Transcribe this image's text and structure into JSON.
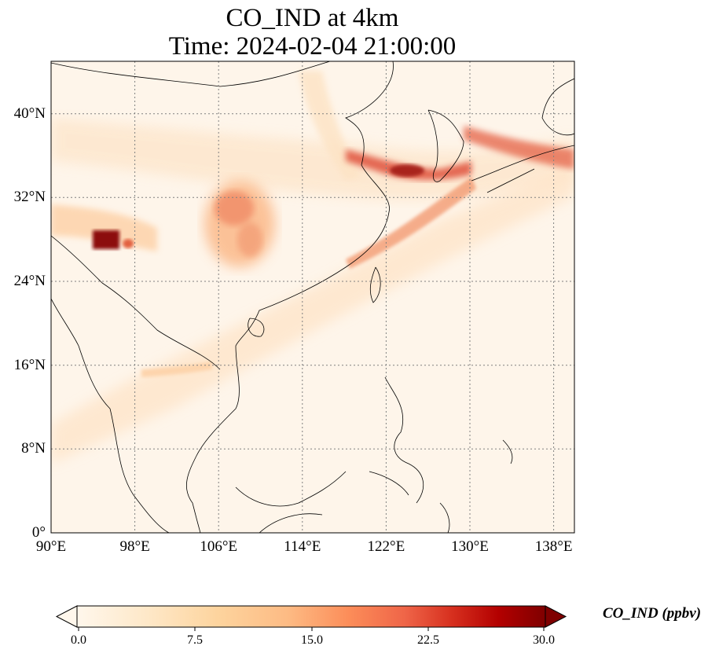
{
  "title": {
    "line1": "CO_IND at 4km",
    "line2": "Time: 2024-02-04 21:00:00"
  },
  "map": {
    "lon_range": [
      90,
      140
    ],
    "lat_range": [
      0,
      45
    ],
    "lat_ticks": [
      "0°",
      "8°N",
      "16°N",
      "24°N",
      "32°N",
      "40°N"
    ],
    "lon_ticks": [
      "90°E",
      "98°E",
      "106°E",
      "114°E",
      "122°E",
      "130°E",
      "138°E"
    ],
    "gridlines": true
  },
  "colorbar": {
    "label": "CO_IND (ppbv)",
    "ticks": [
      "0.0",
      "7.5",
      "15.0",
      "22.5",
      "30.0"
    ],
    "min": 0,
    "max": 30,
    "extend": "both",
    "colors": [
      "#fff7ec",
      "#fee8c8",
      "#fdd49e",
      "#fdbb84",
      "#fc8d59",
      "#ef6548",
      "#d7301f",
      "#b30000",
      "#7f0000"
    ]
  }
}
